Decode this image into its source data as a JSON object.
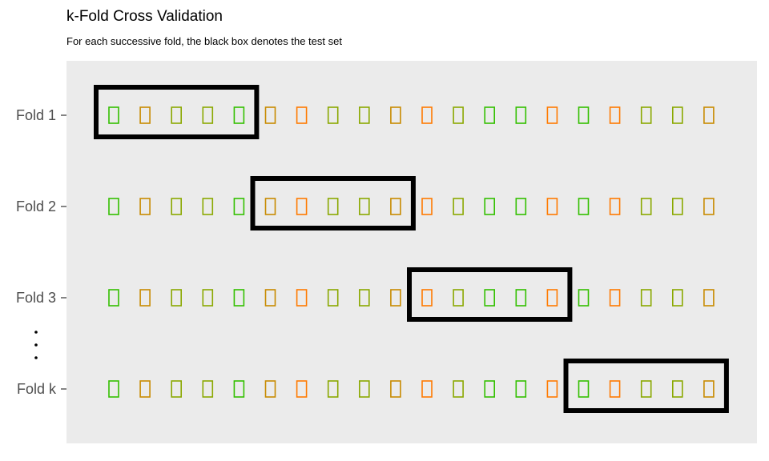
{
  "chart_data": {
    "type": "scatter",
    "title": "k-Fold Cross Validation",
    "subtitle": "For each successive fold, the black box denotes the test set",
    "xlabel": "",
    "ylabel": "",
    "folds": [
      "Fold 1",
      "Fold 2",
      "Fold 3",
      "Fold k"
    ],
    "points_per_fold": 20,
    "fold_size": 5,
    "test_block_index": [
      0,
      1,
      2,
      3
    ],
    "ellipsis": "⋮",
    "point_glyph": "▯",
    "point_colors": [
      "green",
      "goldenrod",
      "olive",
      "olive",
      "green",
      "goldenrod",
      "orange",
      "olive",
      "olive",
      "goldenrod",
      "orange",
      "olive",
      "green",
      "green",
      "orange",
      "green",
      "orange",
      "olive",
      "olive",
      "goldenrod"
    ],
    "colors": {
      "green": "#33c000",
      "goldenrod": "#c88a00",
      "olive": "#8aa800",
      "orange": "#ff7a00",
      "panel": "#ebebeb",
      "box": "#000000",
      "tick": "#333333",
      "label": "#4d4d4d"
    },
    "grid": false,
    "legend": "none"
  }
}
